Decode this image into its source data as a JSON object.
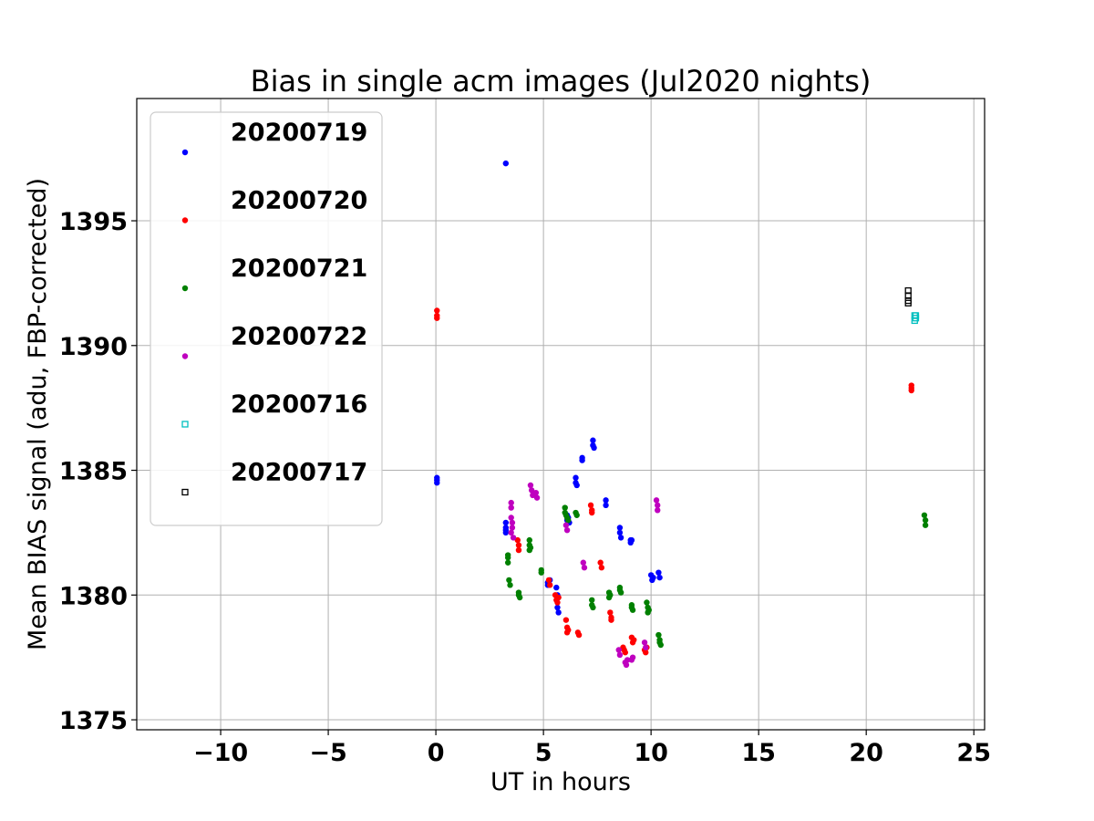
{
  "chart_data": {
    "type": "scatter",
    "title": "Bias in single acm images (Jul2020 nights)",
    "xlabel": "UT in hours",
    "ylabel": "Mean BIAS signal (adu, FBP-corrected)",
    "xlim": [
      -13.9,
      25.5
    ],
    "ylim": [
      1374.6,
      1399.9
    ],
    "xticks": [
      -10,
      -5,
      0,
      5,
      10,
      15,
      20,
      25
    ],
    "xtick_labels": [
      "−10",
      "−5",
      "0",
      "5",
      "10",
      "15",
      "20",
      "25"
    ],
    "yticks": [
      1375,
      1380,
      1385,
      1390,
      1395
    ],
    "ytick_labels": [
      "1375",
      "1380",
      "1385",
      "1390",
      "1395"
    ],
    "grid": true,
    "legend_position": "upper-left",
    "series": [
      {
        "name": "20200719",
        "color": "#0000ff",
        "marker": "dot",
        "x": [
          0.05,
          0.05,
          0.05,
          3.25,
          3.25,
          3.25,
          3.25,
          5.2,
          5.2,
          5.3,
          5.6,
          5.65,
          5.65,
          5.65,
          5.7,
          6.1,
          6.1,
          6.15,
          6.2,
          6.5,
          6.5,
          6.55,
          6.8,
          6.8,
          7.3,
          7.3,
          7.35,
          7.9,
          7.9,
          8.55,
          8.55,
          8.6,
          9.05,
          9.05,
          9.1,
          10.0,
          10.05,
          10.1,
          10.35,
          10.4,
          3.25
        ],
        "y": [
          1384.7,
          1384.6,
          1384.5,
          1382.9,
          1382.7,
          1382.6,
          1382.5,
          1380.5,
          1380.4,
          1380.6,
          1380.3,
          1380.0,
          1379.9,
          1379.5,
          1379.3,
          1383.2,
          1383.0,
          1383.1,
          1382.9,
          1384.7,
          1384.5,
          1384.4,
          1385.5,
          1385.4,
          1386.2,
          1386.0,
          1385.9,
          1383.8,
          1383.6,
          1382.7,
          1382.5,
          1382.3,
          1382.2,
          1382.1,
          1382.2,
          1380.8,
          1380.6,
          1380.7,
          1380.9,
          1380.7,
          1397.3
        ]
      },
      {
        "name": "20200720",
        "color": "#ff0000",
        "marker": "dot",
        "x": [
          0.05,
          0.05,
          0.05,
          3.8,
          3.85,
          3.85,
          5.25,
          5.3,
          5.55,
          5.6,
          5.65,
          5.7,
          6.05,
          6.1,
          6.1,
          6.15,
          6.6,
          6.65,
          7.2,
          7.25,
          7.25,
          7.65,
          7.7,
          8.1,
          8.15,
          8.15,
          8.7,
          8.75,
          8.8,
          9.1,
          9.15,
          9.2,
          9.7,
          9.75,
          9.8,
          22.1,
          22.1,
          22.1
        ],
        "y": [
          1391.4,
          1391.2,
          1391.1,
          1382.2,
          1382.0,
          1381.8,
          1380.6,
          1380.4,
          1380.0,
          1379.8,
          1379.7,
          1379.9,
          1379.0,
          1378.7,
          1378.5,
          1378.6,
          1378.5,
          1378.4,
          1383.6,
          1383.4,
          1383.3,
          1381.3,
          1381.1,
          1379.3,
          1379.1,
          1379.0,
          1377.9,
          1377.8,
          1377.7,
          1378.3,
          1378.1,
          1378.2,
          1377.8,
          1377.7,
          1377.9,
          1388.4,
          1388.3,
          1388.2
        ]
      },
      {
        "name": "20200721",
        "color": "#008000",
        "marker": "dot",
        "x": [
          3.35,
          3.35,
          3.35,
          3.4,
          3.45,
          3.85,
          3.85,
          3.9,
          4.35,
          4.35,
          4.35,
          4.4,
          4.9,
          4.9,
          6.0,
          6.0,
          6.05,
          6.1,
          6.15,
          6.5,
          6.55,
          7.25,
          7.25,
          7.3,
          8.05,
          8.05,
          8.1,
          8.55,
          8.55,
          8.6,
          9.1,
          9.1,
          9.15,
          9.8,
          9.85,
          9.85,
          9.9,
          10.35,
          10.4,
          10.4,
          10.45,
          22.7,
          22.75,
          22.75
        ],
        "y": [
          1381.6,
          1381.5,
          1381.3,
          1380.6,
          1380.4,
          1380.1,
          1380.0,
          1379.9,
          1382.2,
          1382.0,
          1381.8,
          1381.9,
          1381.0,
          1380.9,
          1383.5,
          1383.3,
          1383.2,
          1383.1,
          1383.0,
          1383.3,
          1383.2,
          1379.8,
          1379.6,
          1379.5,
          1380.1,
          1379.9,
          1380.0,
          1380.3,
          1380.2,
          1380.1,
          1379.6,
          1379.5,
          1379.4,
          1379.7,
          1379.5,
          1379.3,
          1379.4,
          1378.4,
          1378.2,
          1378.1,
          1378.0,
          1383.2,
          1383.0,
          1382.8
        ]
      },
      {
        "name": "20200722",
        "color": "#bf00bf",
        "marker": "dot",
        "x": [
          3.5,
          3.5,
          3.5,
          3.55,
          3.55,
          3.5,
          3.6,
          4.4,
          4.45,
          4.5,
          4.65,
          4.7,
          6.05,
          6.1,
          6.85,
          6.9,
          8.5,
          8.55,
          8.8,
          8.85,
          8.9,
          9.1,
          9.15,
          9.7,
          9.75,
          10.25,
          10.3,
          10.3
        ],
        "y": [
          1383.7,
          1383.5,
          1383.1,
          1382.9,
          1382.7,
          1382.5,
          1382.3,
          1384.4,
          1384.2,
          1384.0,
          1384.1,
          1383.9,
          1382.8,
          1382.6,
          1381.3,
          1381.1,
          1377.8,
          1377.6,
          1377.3,
          1377.2,
          1377.4,
          1377.4,
          1377.5,
          1378.1,
          1377.9,
          1383.8,
          1383.6,
          1383.4
        ]
      },
      {
        "name": "20200716",
        "color": "#00bfbf",
        "marker": "open-square",
        "x": [
          22.25,
          22.3,
          22.25,
          22.3
        ],
        "y": [
          1391.2,
          1391.1,
          1391.0,
          1391.2
        ]
      },
      {
        "name": "20200717",
        "color": "#000000",
        "marker": "open-square",
        "x": [
          21.95,
          21.95,
          21.95,
          21.95
        ],
        "y": [
          1392.2,
          1392.0,
          1391.8,
          1391.7
        ]
      }
    ]
  }
}
